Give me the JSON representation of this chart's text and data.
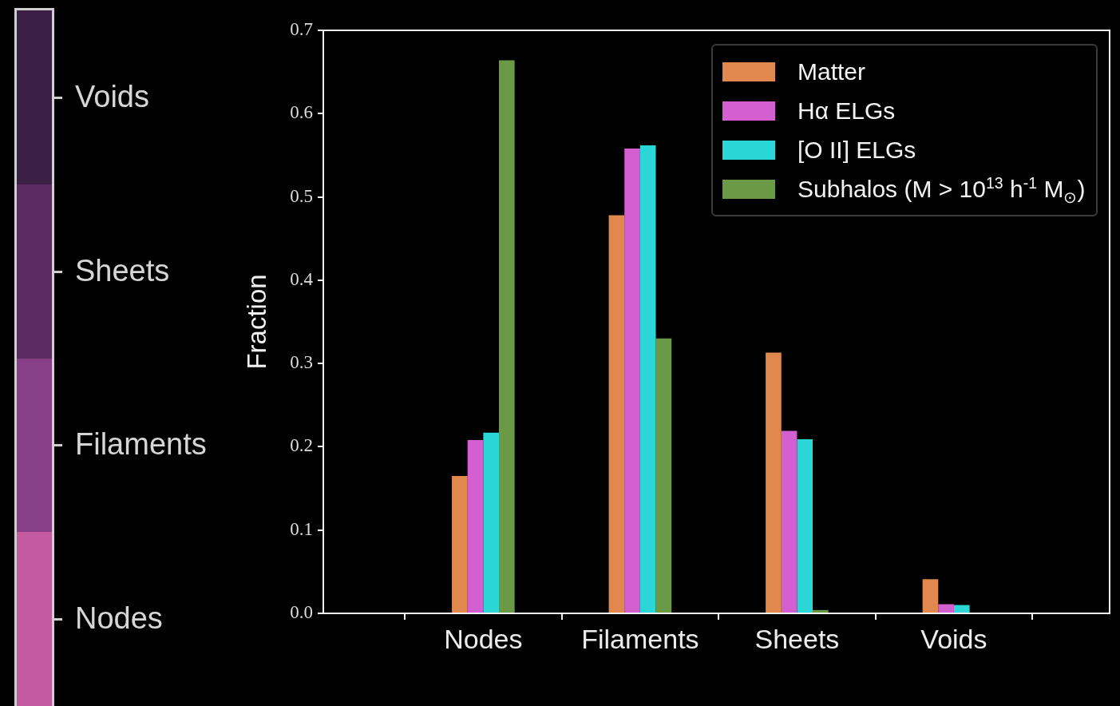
{
  "chart_data": [
    {
      "type": "other",
      "categories": [
        "Voids",
        "Sheets",
        "Filaments",
        "Nodes"
      ],
      "colors": [
        "#3b1f45",
        "#5c2b62",
        "#873f87",
        "#c45aa2"
      ]
    },
    {
      "type": "bar",
      "categories": [
        "Nodes",
        "Filaments",
        "Sheets",
        "Voids"
      ],
      "ylabel": "Fraction",
      "ylim": [
        0,
        0.7
      ],
      "yticks": [
        {
          "value": 0,
          "label": "0.0"
        },
        0.1,
        0.2,
        0.3,
        0.4,
        0.5,
        0.6,
        0.7
      ],
      "legend": "top right",
      "series": [
        {
          "name": "Matter",
          "color": "#e0884e",
          "values": [
            0.165,
            0.478,
            0.313,
            0.041
          ]
        },
        {
          "name": "Hα ELGs",
          "color": "#d45fd0",
          "values": [
            0.208,
            0.558,
            0.219,
            0.011
          ]
        },
        {
          "name": "[O II] ELGs",
          "color": "#2bd6d6",
          "values": [
            0.217,
            0.562,
            0.209,
            0.01
          ]
        },
        {
          "name": "Subhalos (M > 10$^{13}$ h$^{-1}$ M$_{⊙}$)",
          "color": "#6a9a45",
          "values": [
            0.664,
            0.33,
            0.004,
            0
          ]
        }
      ]
    }
  ]
}
